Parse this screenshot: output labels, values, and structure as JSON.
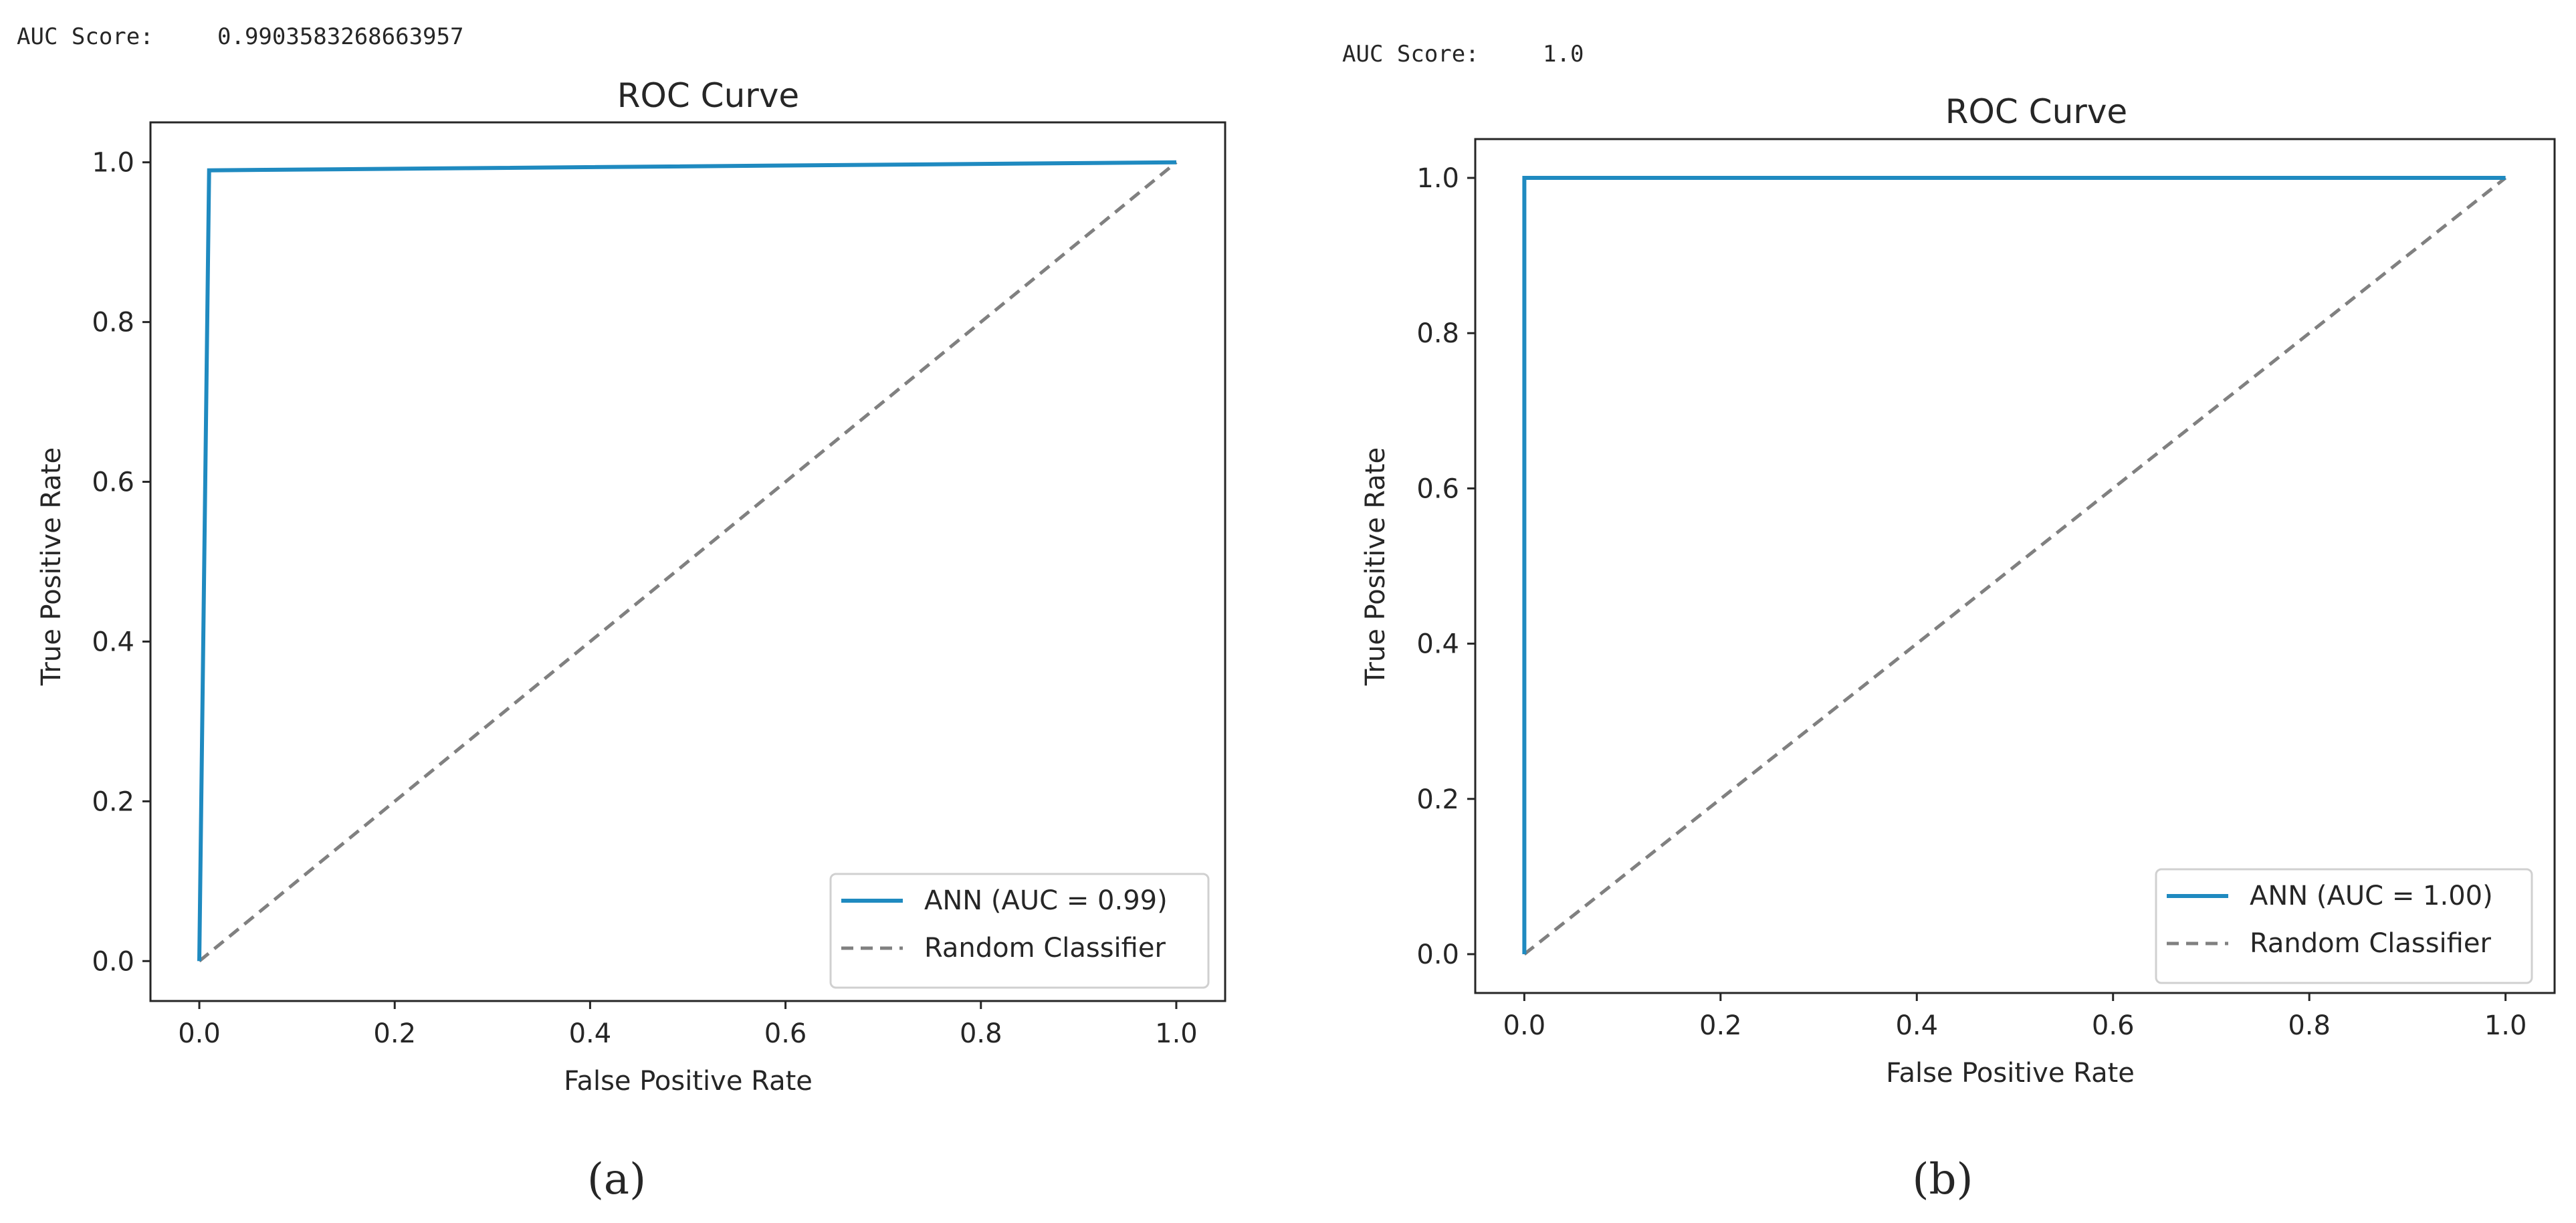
{
  "colors": {
    "roc_line": "#1f8ac0",
    "random_line": "#808080",
    "axis": "#262626",
    "legend_border": "#d0d0d0"
  },
  "chart_data": [
    {
      "type": "line",
      "panel_label": "(a)",
      "auc_text_label": "AUC Score:",
      "auc_text_value": "0.9903583268663957",
      "title": "ROC Curve",
      "xlabel": "False Positive Rate",
      "ylabel": "True Positive Rate",
      "xlim": [
        -0.05,
        1.05
      ],
      "ylim": [
        -0.05,
        1.05
      ],
      "xticks": [
        0.0,
        0.2,
        0.4,
        0.6,
        0.8,
        1.0
      ],
      "xtick_labels": [
        "0.0",
        "0.2",
        "0.4",
        "0.6",
        "0.8",
        "1.0"
      ],
      "yticks": [
        0.0,
        0.2,
        0.4,
        0.6,
        0.8,
        1.0
      ],
      "ytick_labels": [
        "0.0",
        "0.2",
        "0.4",
        "0.6",
        "0.8",
        "1.0"
      ],
      "grid": false,
      "legend_position": "lower-right",
      "series": [
        {
          "name": "ANN (AUC = 0.99)",
          "style": "solid",
          "color": "#1f8ac0",
          "x": [
            0.0,
            0.01,
            1.0
          ],
          "y": [
            0.0,
            0.99,
            1.0
          ]
        },
        {
          "name": "Random Classifier",
          "style": "dashed",
          "color": "#808080",
          "x": [
            0.0,
            1.0
          ],
          "y": [
            0.0,
            1.0
          ]
        }
      ]
    },
    {
      "type": "line",
      "panel_label": "(b)",
      "auc_text_label": "AUC Score:",
      "auc_text_value": "1.0",
      "title": "ROC Curve",
      "xlabel": "False Positive Rate",
      "ylabel": "True Positive Rate",
      "xlim": [
        -0.05,
        1.05
      ],
      "ylim": [
        -0.05,
        1.05
      ],
      "xticks": [
        0.0,
        0.2,
        0.4,
        0.6,
        0.8,
        1.0
      ],
      "xtick_labels": [
        "0.0",
        "0.2",
        "0.4",
        "0.6",
        "0.8",
        "1.0"
      ],
      "yticks": [
        0.0,
        0.2,
        0.4,
        0.6,
        0.8,
        1.0
      ],
      "ytick_labels": [
        "0.0",
        "0.2",
        "0.4",
        "0.6",
        "0.8",
        "1.0"
      ],
      "grid": false,
      "legend_position": "lower-right",
      "series": [
        {
          "name": "ANN (AUC = 1.00)",
          "style": "solid",
          "color": "#1f8ac0",
          "x": [
            0.0,
            0.0,
            1.0
          ],
          "y": [
            0.0,
            1.0,
            1.0
          ]
        },
        {
          "name": "Random Classifier",
          "style": "dashed",
          "color": "#808080",
          "x": [
            0.0,
            1.0
          ],
          "y": [
            0.0,
            1.0
          ]
        }
      ]
    }
  ]
}
